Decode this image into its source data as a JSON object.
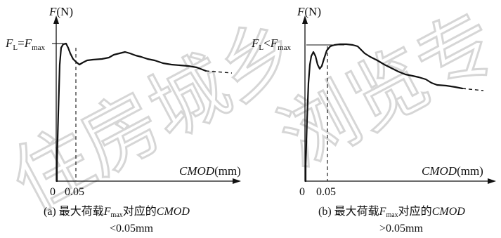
{
  "watermark": {
    "left": "住房城乡",
    "right": "浏览专"
  },
  "panel_a": {
    "y_axis_letter": "F",
    "y_axis_unit": "(N)",
    "x_axis_name": "CMOD",
    "x_axis_unit": "(mm)",
    "origin": "0",
    "tick": "0.05",
    "fl_letter": "F",
    "fl_sub": "L",
    "relation": "=",
    "fmax_letter": "F",
    "fmax_sub": "max",
    "caption_prefix": "(a) 最大荷载",
    "caption_f": "F",
    "caption_sub": "max",
    "caption_mid": "对应的",
    "caption_cmod": "CMOD",
    "caption_line2": "<0.05mm"
  },
  "panel_b": {
    "y_axis_letter": "F",
    "y_axis_unit": "(N)",
    "x_axis_name": "CMOD",
    "x_axis_unit": "(mm)",
    "origin": "0",
    "tick": "0.05",
    "fl_letter": "F",
    "fl_sub": "L",
    "relation": "<",
    "fmax_letter": "F",
    "fmax_sub": "max",
    "caption_prefix": "(b) 最大荷载",
    "caption_f": "F",
    "caption_sub": "max",
    "caption_mid": "对应的",
    "caption_cmod": "CMOD",
    "caption_line2": ">0.05mm"
  }
}
